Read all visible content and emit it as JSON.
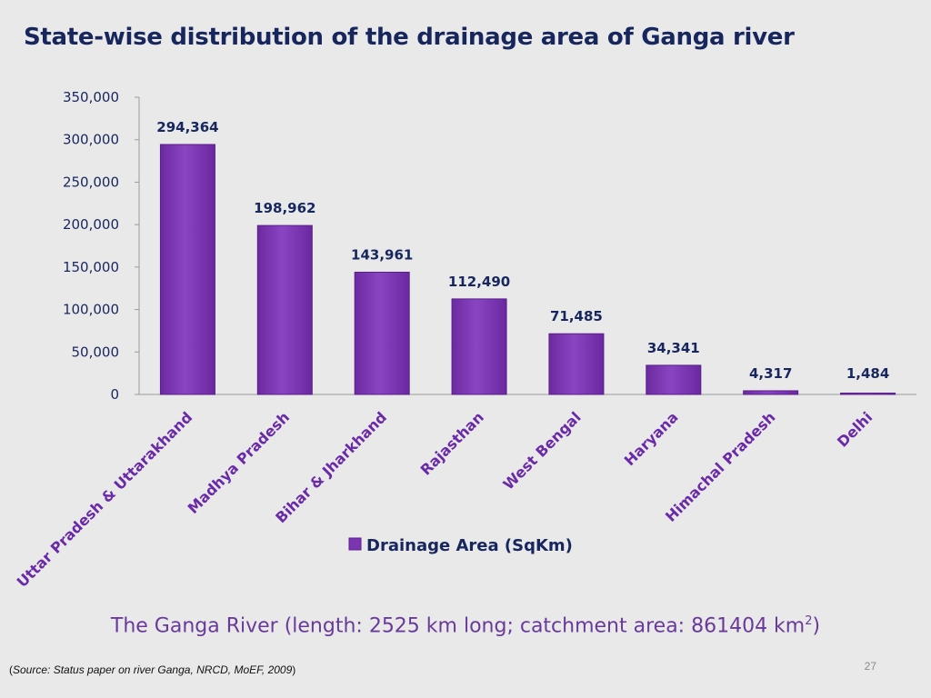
{
  "slide": {
    "title": "State-wise distribution of the drainage area of Ganga river",
    "subtitle_main": "The Ganga River (length: 2525 km long; catchment area: 861404 km",
    "subtitle_sup": "2",
    "subtitle_end": ")",
    "source_open": "(",
    "source_italic": "Source: Status paper on river Ganga, NRCD, MoEF, 2009",
    "source_close": ")",
    "page_number": "27"
  },
  "chart_data": {
    "type": "bar",
    "categories": [
      "Uttar Pradesh & Uttarakhand",
      "Madhya Pradesh",
      "Bihar & Jharkhand",
      "Rajasthan",
      "West Bengal",
      "Haryana",
      "Himachal Pradesh",
      "Delhi"
    ],
    "series": [
      {
        "name": "Drainage Area (SqKm)",
        "values": [
          294364,
          198962,
          143961,
          112490,
          71485,
          34341,
          4317,
          1484
        ]
      }
    ],
    "data_labels": [
      "294,364",
      "198,962",
      "143,961",
      "112,490",
      "71,485",
      "34,341",
      "4,317",
      "1,484"
    ],
    "yticks": [
      "0",
      "50,000",
      "100,000",
      "150,000",
      "200,000",
      "250,000",
      "300,000",
      "350,000"
    ],
    "ytick_values": [
      0,
      50000,
      100000,
      150000,
      200000,
      250000,
      300000,
      350000
    ],
    "ylim": [
      0,
      350000
    ],
    "grid": false,
    "legend_position": "bottom",
    "colors": {
      "bar": "#7b35b0",
      "bar_edge": "#5a1f8a",
      "label": "#17275e",
      "xtick": "#6a2aa8"
    }
  }
}
